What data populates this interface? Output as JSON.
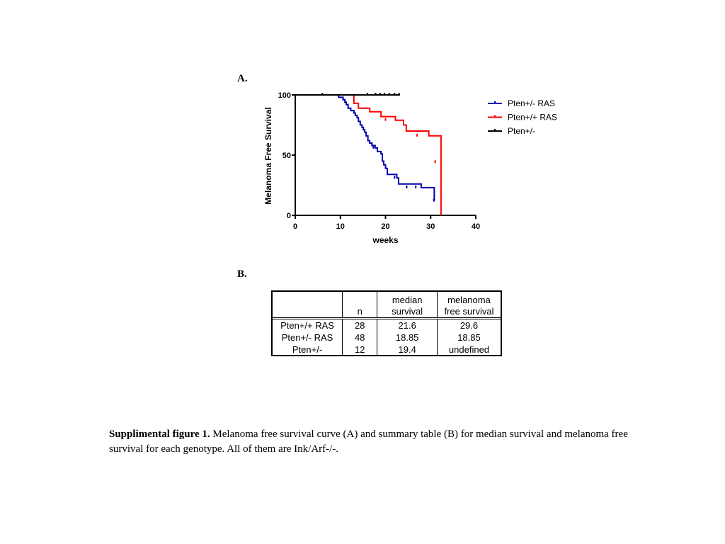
{
  "panel_a_label": "A.",
  "panel_b_label": "B.",
  "chart_data": {
    "type": "line",
    "xlabel": "weeks",
    "ylabel": "Melanoma Free Survival",
    "xlim": [
      0,
      40
    ],
    "ylim": [
      0,
      100
    ],
    "x_ticks": [
      "0",
      "10",
      "20",
      "30",
      "40"
    ],
    "y_ticks": [
      "0",
      "50",
      "100"
    ],
    "grid": false,
    "legend_position": "right",
    "series": [
      {
        "name": "Pten+/- RAS",
        "color": "#0000aa",
        "style": "step",
        "x": [
          0,
          9.6,
          10.6,
          11.0,
          11.3,
          11.7,
          12.3,
          13.0,
          13.3,
          13.7,
          14.0,
          14.4,
          14.8,
          15.1,
          15.4,
          15.7,
          16.1,
          16.5,
          17.0,
          17.7,
          18.2,
          19.0,
          19.3,
          19.6,
          20.0,
          20.4,
          22.5,
          22.9,
          27.9,
          30.8
        ],
        "y": [
          100,
          98,
          96,
          94,
          92,
          89,
          87,
          85,
          83,
          81,
          78,
          75,
          73,
          71,
          69,
          66,
          62,
          60,
          58,
          56,
          53,
          51,
          45,
          42,
          39,
          34,
          31,
          26,
          23,
          12
        ],
        "censored_x": [
          17.3,
          22.0,
          24.7,
          26.7,
          30.7
        ],
        "censored_y": [
          56,
          31,
          23,
          23,
          12
        ]
      },
      {
        "name": "Pten+/+ RAS",
        "color": "#ff0000",
        "style": "step",
        "x": [
          0,
          12.5,
          13.0,
          14.0,
          16.5,
          19.0,
          22.2,
          24.0,
          24.6,
          29.6,
          32.3
        ],
        "y": [
          100,
          100,
          93,
          89,
          86,
          82,
          79,
          75,
          70,
          66,
          44
        ],
        "drop_to_zero_x": 32.3,
        "censored_x": [
          20.0,
          27.0,
          31.0
        ],
        "censored_y": [
          79,
          66,
          44
        ]
      },
      {
        "name": "Pten+/-",
        "color": "#000000",
        "style": "step",
        "x": [
          0,
          23.2
        ],
        "y": [
          100,
          100
        ],
        "censored_x": [
          6.0,
          16.0,
          17.8,
          18.8,
          19.8,
          20.8,
          22.0,
          23.0
        ],
        "censored_y": [
          100,
          100,
          100,
          100,
          100,
          100,
          100,
          100
        ]
      }
    ]
  },
  "table": {
    "headers": [
      "",
      "n",
      "median\nsurvival",
      "melanoma\nfree survival"
    ],
    "rows": [
      [
        "Pten+/+ RAS",
        "28",
        "21.6",
        "29.6"
      ],
      [
        "Pten+/- RAS",
        "48",
        "18.85",
        "18.85"
      ],
      [
        "Pten+/-",
        "12",
        "19.4",
        "undefined"
      ]
    ]
  },
  "caption": {
    "bold": "Supplimental figure 1.",
    "text": " Melanoma free survival curve (A) and  summary table (B) for median survival and melanoma free survival for each genotype. All of them are Ink/Arf-/-."
  }
}
